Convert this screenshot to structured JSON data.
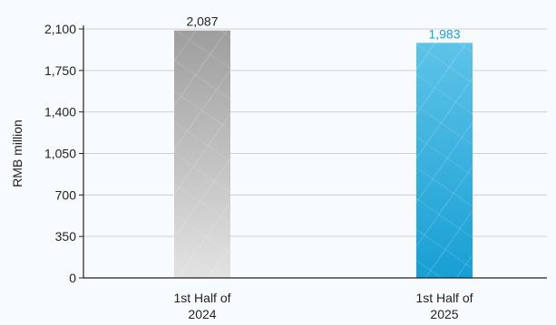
{
  "chart_data": {
    "type": "bar",
    "categories": [
      [
        "1st Half of",
        "2024"
      ],
      [
        "1st Half of",
        "2025"
      ]
    ],
    "values": [
      2087,
      1983
    ],
    "value_labels": [
      "2,087",
      "1,983"
    ],
    "ylabel": "RMB million",
    "xlabel": "",
    "title": "",
    "ylim": [
      0,
      2100
    ],
    "yticks": [
      0,
      350,
      700,
      1050,
      1400,
      1750,
      2100
    ],
    "ytick_labels": [
      "0",
      "350",
      "700",
      "1,050",
      "1,400",
      "1,750",
      "2,100"
    ],
    "grid": true,
    "legend": "none",
    "colors": {
      "bar_2024": "#a9a9a9",
      "bar_2025": "#2aa3d3",
      "value_label_2024": "#222222",
      "value_label_2025": "#1a9fd0",
      "grid": "#cfcfcf",
      "axis": "#222222"
    }
  }
}
